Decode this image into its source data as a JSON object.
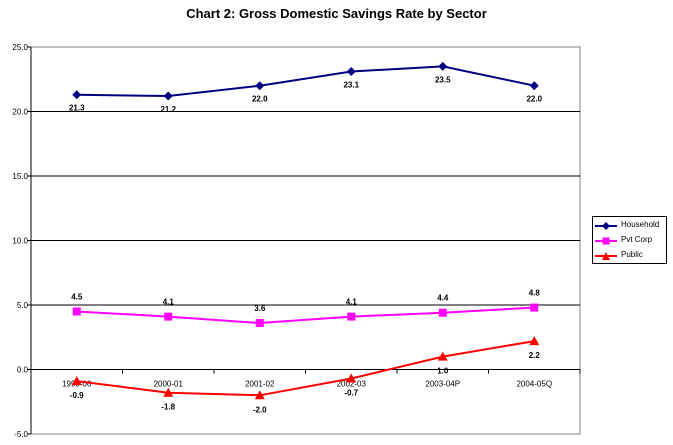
{
  "chart_data": {
    "type": "line",
    "title": "Chart 2: Gross Domestic Savings Rate by Sector",
    "categories": [
      "1999-00",
      "2000-01",
      "2001-02",
      "2002-03",
      "2003-04P",
      "2004-05Q"
    ],
    "y_ticks": [
      "25.0",
      "20.0",
      "15.0",
      "10.0",
      "5.0",
      "0.0",
      "-5.0"
    ],
    "ylim": [
      -5,
      25
    ],
    "grid": "horizontal",
    "legend_position": "right",
    "series": [
      {
        "name": "Household",
        "color": "#000080",
        "marker": "diamond",
        "values": [
          21.3,
          21.2,
          22.0,
          23.1,
          23.5,
          22.0
        ],
        "labels": [
          "21.3",
          "21.2",
          "22.0",
          "23.1",
          "23.5",
          "22.0"
        ]
      },
      {
        "name": "Pvt Corp",
        "color": "#FF00FF",
        "marker": "square",
        "values": [
          4.5,
          4.1,
          3.6,
          4.1,
          4.4,
          4.8
        ],
        "labels": [
          "4.5",
          "4.1",
          "3.6",
          "4.1",
          "4.4",
          "4.8"
        ]
      },
      {
        "name": "Public",
        "color": "#FF0000",
        "marker": "triangle",
        "values": [
          -0.9,
          -1.8,
          -2.0,
          -0.7,
          1.0,
          2.2
        ],
        "labels": [
          "-0.9",
          "-1.8",
          "-2.0",
          "-0.7",
          "1.0",
          "2.2"
        ]
      }
    ]
  }
}
